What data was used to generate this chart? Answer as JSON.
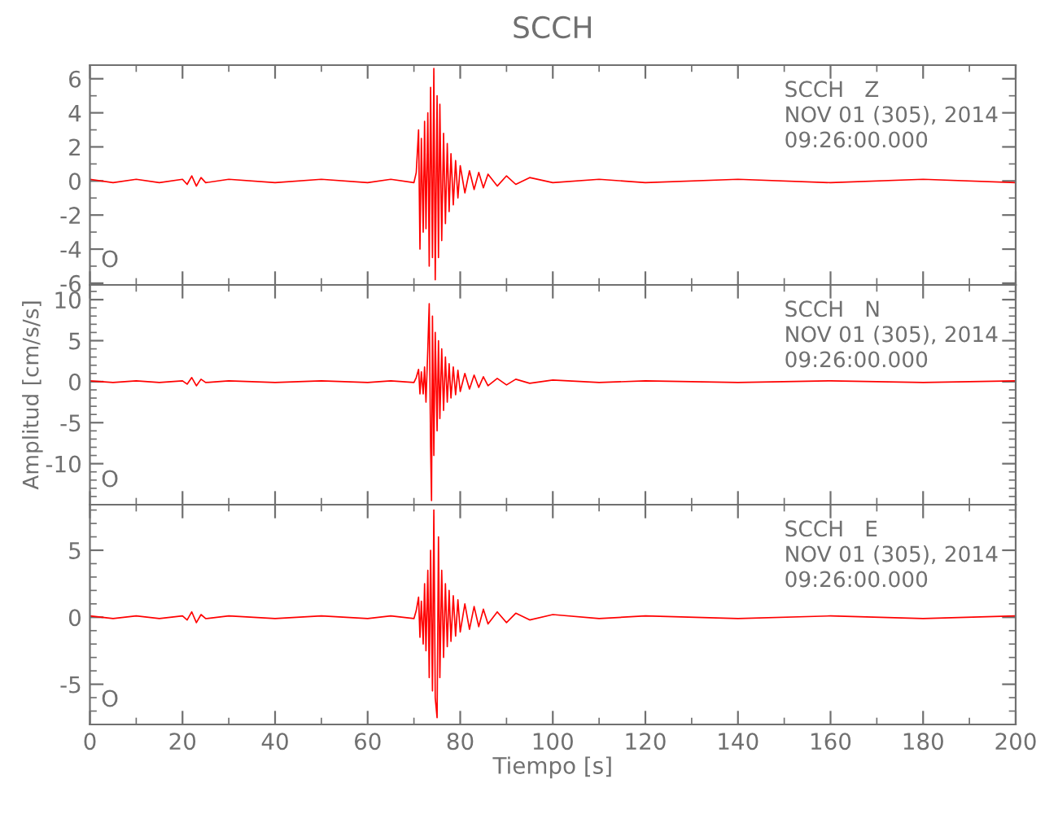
{
  "chart_data": [
    {
      "type": "line",
      "title": "SCCH",
      "annotations": [
        "SCCH   Z",
        "NOV 01 (305), 2014",
        "09:26:00.000",
        "O"
      ],
      "xlim": [
        0,
        200
      ],
      "xticks": [
        0,
        20,
        40,
        60,
        80,
        100,
        120,
        140,
        160,
        180,
        200
      ],
      "ylim": [
        -6.1,
        6.8
      ],
      "yticks": [
        -6,
        -4,
        -2,
        0,
        2,
        4,
        6
      ],
      "tick_labels": "y",
      "grid": false,
      "legend": false,
      "x": [
        0,
        5,
        10,
        15,
        20,
        21,
        22,
        23,
        24,
        25,
        30,
        40,
        50,
        60,
        65,
        70,
        70.5,
        71,
        71.3,
        71.6,
        72,
        72.3,
        72.6,
        73,
        73.3,
        73.6,
        74,
        74.3,
        74.6,
        75,
        75.3,
        75.6,
        76,
        76.4,
        76.8,
        77.2,
        77.6,
        78,
        78.5,
        79,
        79.5,
        80,
        81,
        82,
        83,
        84,
        85,
        86,
        88,
        90,
        92,
        95,
        100,
        110,
        120,
        140,
        160,
        180,
        200
      ],
      "series": [
        {
          "color": "#ff0000",
          "values": [
            0.1,
            -0.1,
            0.1,
            -0.1,
            0.1,
            -0.2,
            0.3,
            -0.3,
            0.2,
            -0.1,
            0.1,
            -0.1,
            0.1,
            -0.1,
            0.1,
            -0.1,
            0.5,
            3.0,
            -4.0,
            2.5,
            -3.0,
            3.5,
            -2.8,
            4.0,
            -5.0,
            5.5,
            -4.5,
            6.6,
            -5.8,
            5.0,
            -4.5,
            4.5,
            -3.5,
            2.8,
            -2.5,
            2.2,
            -1.8,
            1.6,
            -1.4,
            1.2,
            -1.0,
            0.9,
            -0.7,
            0.6,
            -0.5,
            0.5,
            -0.4,
            0.4,
            -0.3,
            0.3,
            -0.2,
            0.2,
            -0.1,
            0.1,
            -0.1,
            0.1,
            -0.1,
            0.1,
            -0.1
          ]
        }
      ]
    },
    {
      "type": "line",
      "ylabel": "Amplitud [cm/s/s]",
      "annotations": [
        "SCCH   N",
        "NOV 01 (305), 2014",
        "09:26:00.000",
        "O"
      ],
      "xlim": [
        0,
        200
      ],
      "xticks": [
        0,
        20,
        40,
        60,
        80,
        100,
        120,
        140,
        160,
        180,
        200
      ],
      "ylim": [
        -15,
        11.8
      ],
      "yticks": [
        -10,
        -5,
        0,
        5,
        10
      ],
      "tick_labels": "y",
      "grid": false,
      "legend": false,
      "x": [
        0,
        5,
        10,
        15,
        20,
        21,
        22,
        23,
        24,
        25,
        30,
        40,
        50,
        60,
        65,
        70,
        70.5,
        71,
        71.3,
        71.6,
        72,
        72.3,
        72.6,
        73,
        73.3,
        73.6,
        73.8,
        74,
        74.3,
        74.6,
        75,
        75.3,
        75.6,
        76,
        76.4,
        76.8,
        77.2,
        77.6,
        78,
        78.5,
        79,
        79.5,
        80,
        81,
        82,
        83,
        84,
        85,
        86,
        88,
        90,
        92,
        95,
        100,
        110,
        120,
        140,
        160,
        180,
        200
      ],
      "series": [
        {
          "color": "#ff0000",
          "values": [
            0.1,
            -0.1,
            0.1,
            -0.1,
            0.1,
            -0.3,
            0.5,
            -0.5,
            0.3,
            -0.1,
            0.1,
            -0.1,
            0.1,
            -0.1,
            0.1,
            -0.1,
            0.5,
            1.5,
            -1.5,
            1.2,
            -1.5,
            1.8,
            -2.5,
            4.0,
            9.5,
            -8.0,
            -14.5,
            8.0,
            -9.0,
            6.0,
            -6.0,
            5.0,
            -4.5,
            4.0,
            -3.5,
            3.0,
            -2.5,
            2.2,
            -2.0,
            1.8,
            -1.6,
            1.4,
            -1.2,
            1.0,
            -0.9,
            0.8,
            -0.7,
            0.6,
            -0.5,
            0.4,
            -0.4,
            0.3,
            -0.2,
            0.2,
            -0.1,
            0.1,
            -0.1,
            0.1,
            -0.1,
            0.1
          ]
        }
      ]
    },
    {
      "type": "line",
      "xlabel": "Tiempo [s]",
      "annotations": [
        "SCCH   E",
        "NOV 01 (305), 2014",
        "09:26:00.000",
        "O"
      ],
      "xlim": [
        0,
        200
      ],
      "xticks": [
        0,
        20,
        40,
        60,
        80,
        100,
        120,
        140,
        160,
        180,
        200
      ],
      "ylim": [
        -8,
        8.4
      ],
      "yticks": [
        -5,
        0,
        5
      ],
      "grid": false,
      "legend": false,
      "x": [
        0,
        5,
        10,
        15,
        20,
        21,
        22,
        23,
        24,
        25,
        30,
        40,
        50,
        60,
        65,
        70,
        70.5,
        71,
        71.3,
        71.6,
        72,
        72.3,
        72.6,
        73,
        73.3,
        73.6,
        74,
        74.3,
        74.6,
        75,
        75.3,
        75.6,
        76,
        76.4,
        76.8,
        77.2,
        77.6,
        78,
        78.5,
        79,
        79.5,
        80,
        81,
        82,
        83,
        84,
        85,
        86,
        88,
        90,
        92,
        95,
        100,
        110,
        120,
        140,
        160,
        180,
        200
      ],
      "series": [
        {
          "color": "#ff0000",
          "values": [
            0.1,
            -0.1,
            0.1,
            -0.1,
            0.1,
            -0.2,
            0.4,
            -0.4,
            0.2,
            -0.1,
            0.1,
            -0.1,
            0.1,
            -0.1,
            0.1,
            -0.1,
            0.5,
            1.5,
            -1.5,
            1.2,
            -2.0,
            2.5,
            -2.5,
            3.5,
            -4.5,
            5.0,
            -5.5,
            8.0,
            -6.0,
            -7.5,
            6.0,
            -4.5,
            3.5,
            -3.0,
            2.5,
            -2.2,
            2.0,
            -1.8,
            1.6,
            -1.4,
            1.3,
            -1.1,
            1.0,
            -0.9,
            0.8,
            -0.7,
            0.6,
            -0.5,
            0.4,
            -0.4,
            0.3,
            -0.2,
            0.2,
            -0.1,
            0.1,
            -0.1,
            0.1,
            -0.1,
            0.1
          ]
        }
      ]
    }
  ]
}
